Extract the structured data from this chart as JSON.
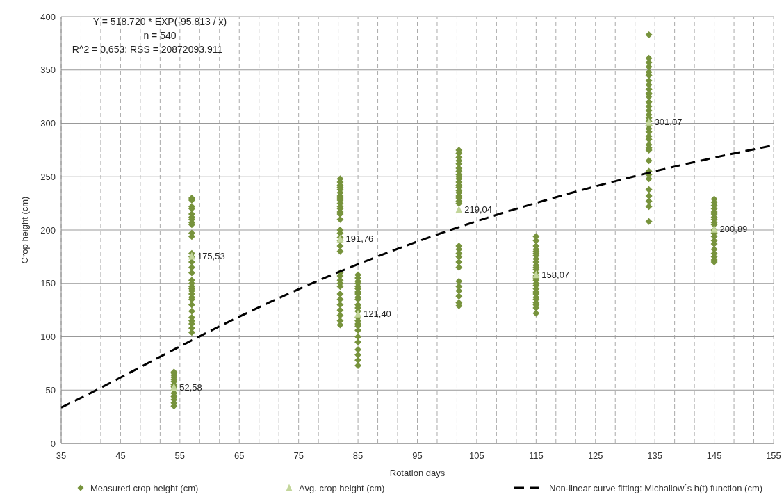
{
  "chart_data": {
    "type": "scatter",
    "xlabel": "Rotation days",
    "ylabel": "Crop height (cm)",
    "annotations": [
      "Y = 518.720 * EXP(-95.813 / x)",
      "n = 540",
      "R^2 = 0,653; RSS = 20872093.911"
    ],
    "xlim": [
      35,
      155
    ],
    "ylim": [
      0,
      400
    ],
    "xticks": [
      35,
      {
        "value": 38.333,
        "label": null
      },
      {
        "value": 41.667,
        "label": null
      },
      45,
      {
        "value": 48.333,
        "label": null
      },
      {
        "value": 51.667,
        "label": null
      },
      55,
      {
        "value": 58.333,
        "label": null
      },
      {
        "value": 61.667,
        "label": null
      },
      65,
      {
        "value": 68.333,
        "label": null
      },
      {
        "value": 71.667,
        "label": null
      },
      75,
      {
        "value": 78.333,
        "label": null
      },
      {
        "value": 81.667,
        "label": null
      },
      85,
      {
        "value": 88.333,
        "label": null
      },
      {
        "value": 91.667,
        "label": null
      },
      95,
      {
        "value": 98.333,
        "label": null
      },
      {
        "value": 101.667,
        "label": null
      },
      105,
      {
        "value": 108.333,
        "label": null
      },
      {
        "value": 111.667,
        "label": null
      },
      115,
      {
        "value": 118.333,
        "label": null
      },
      {
        "value": 121.667,
        "label": null
      },
      125,
      {
        "value": 128.333,
        "label": null
      },
      {
        "value": 131.667,
        "label": null
      },
      135,
      {
        "value": 138.333,
        "label": null
      },
      {
        "value": 141.667,
        "label": null
      },
      145,
      {
        "value": 148.333,
        "label": null
      },
      {
        "value": 151.667,
        "label": null
      },
      155
    ],
    "yticks": [
      0,
      50,
      100,
      150,
      200,
      250,
      300,
      350,
      400
    ],
    "grid": true,
    "legend": "bottom",
    "series": [
      {
        "name": "Measured crop height (cm)",
        "type": "scatter",
        "marker": "diamond",
        "color": "#77933c",
        "x": [
          54,
          54,
          54,
          54,
          54,
          54,
          54,
          54,
          54,
          54,
          54,
          54,
          54,
          54,
          57,
          57,
          57,
          57,
          57,
          57,
          57,
          57,
          57,
          57,
          57,
          57,
          57,
          57,
          57,
          57,
          57,
          57,
          57,
          57,
          57,
          57,
          57,
          57,
          57,
          57,
          57,
          57,
          57,
          57,
          57,
          82,
          82,
          82,
          82,
          82,
          82,
          82,
          82,
          82,
          82,
          82,
          82,
          82,
          82,
          82,
          82,
          82,
          82,
          82,
          82,
          82,
          82,
          82,
          82,
          82,
          82,
          82,
          82,
          82,
          82,
          82,
          82,
          82,
          85,
          85,
          85,
          85,
          85,
          85,
          85,
          85,
          85,
          85,
          85,
          85,
          85,
          85,
          85,
          85,
          85,
          85,
          85,
          85,
          85,
          85,
          85,
          85,
          102,
          102,
          102,
          102,
          102,
          102,
          102,
          102,
          102,
          102,
          102,
          102,
          102,
          102,
          102,
          102,
          102,
          102,
          102,
          102,
          102,
          102,
          102,
          102,
          102,
          102,
          102,
          102,
          102,
          102,
          102,
          115,
          115,
          115,
          115,
          115,
          115,
          115,
          115,
          115,
          115,
          115,
          115,
          115,
          115,
          115,
          115,
          115,
          115,
          115,
          115,
          115,
          115,
          115,
          115,
          115,
          115,
          115,
          134,
          134,
          134,
          134,
          134,
          134,
          134,
          134,
          134,
          134,
          134,
          134,
          134,
          134,
          134,
          134,
          134,
          134,
          134,
          134,
          134,
          134,
          134,
          134,
          134,
          134,
          134,
          134,
          134,
          134,
          134,
          134,
          134,
          134,
          145,
          145,
          145,
          145,
          145,
          145,
          145,
          145,
          145,
          145,
          145,
          145,
          145,
          145,
          145,
          145,
          145,
          145,
          145,
          145
        ],
        "values": [
          35,
          38,
          41,
          44,
          47,
          50,
          53,
          55,
          58,
          60,
          62,
          64,
          66,
          67,
          230,
          228,
          222,
          220,
          215,
          212,
          210,
          207,
          205,
          197,
          194,
          178,
          175,
          170,
          165,
          160,
          153,
          150,
          147,
          145,
          143,
          140,
          137,
          135,
          130,
          124,
          118,
          115,
          112,
          108,
          104,
          248,
          245,
          242,
          240,
          238,
          235,
          232,
          230,
          228,
          225,
          222,
          220,
          217,
          215,
          210,
          200,
          197,
          193,
          190,
          185,
          180,
          160,
          157,
          153,
          150,
          147,
          140,
          135,
          130,
          125,
          120,
          115,
          111,
          158,
          155,
          152,
          150,
          147,
          145,
          142,
          140,
          137,
          135,
          130,
          127,
          124,
          118,
          115,
          112,
          110,
          106,
          100,
          95,
          88,
          83,
          78,
          73,
          275,
          272,
          268,
          265,
          262,
          258,
          255,
          252,
          250,
          248,
          245,
          242,
          240,
          237,
          235,
          232,
          230,
          227,
          225,
          185,
          182,
          178,
          175,
          170,
          165,
          152,
          147,
          143,
          138,
          132,
          129,
          194,
          190,
          185,
          182,
          180,
          178,
          176,
          173,
          170,
          167,
          165,
          163,
          160,
          157,
          155,
          153,
          150,
          148,
          145,
          142,
          140,
          137,
          135,
          132,
          130,
          127,
          122,
          383,
          361,
          357,
          353,
          348,
          345,
          340,
          336,
          332,
          328,
          325,
          320,
          316,
          312,
          308,
          305,
          302,
          298,
          295,
          292,
          288,
          285,
          280,
          277,
          275,
          265,
          255,
          252,
          248,
          238,
          232,
          227,
          222,
          208,
          229,
          226,
          223,
          220,
          217,
          215,
          212,
          210,
          207,
          205,
          200,
          197,
          194,
          190,
          187,
          182,
          178,
          175,
          172,
          170
        ]
      },
      {
        "name": "Avg. crop height (cm)",
        "type": "scatter",
        "marker": "triangle",
        "color": "#c3d69b",
        "x": [
          54,
          57,
          82,
          85,
          102,
          115,
          134,
          145
        ],
        "values": [
          52.58,
          175.53,
          191.76,
          121.4,
          219.04,
          158.07,
          301.07,
          200.89
        ],
        "value_labels": [
          "52,58",
          "175,53",
          "191,76",
          "121,40",
          "219,04",
          "158,07",
          "301,07",
          "200,89"
        ]
      },
      {
        "name": "Non-linear curve fitting: Michailow´s h(t) function (cm)",
        "type": "line",
        "marker": "none",
        "line_style": "dashed",
        "color": "#000000",
        "x": [
          35,
          40,
          45,
          50,
          55,
          60,
          65,
          70,
          75,
          80,
          85,
          90,
          95,
          100,
          105,
          110,
          115,
          120,
          125,
          130,
          135,
          140,
          145,
          150,
          155
        ],
        "values": [
          33.6,
          47.3,
          61.7,
          76.4,
          90.9,
          105.1,
          118.8,
          132.0,
          144.6,
          156.6,
          168.0,
          178.9,
          189.2,
          199.0,
          208.3,
          217.1,
          225.4,
          233.4,
          241.0,
          248.2,
          255.1,
          261.6,
          267.9,
          273.8,
          279.5
        ]
      }
    ]
  }
}
